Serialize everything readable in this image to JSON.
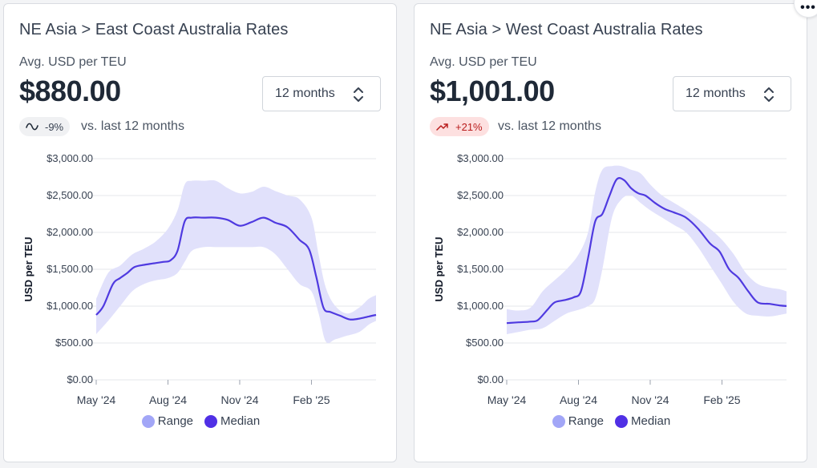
{
  "colors": {
    "median": "#4f3ae0",
    "range": "#e1e1fb",
    "range_legend": "#a2a6f7",
    "median_legend": "#5030e5",
    "grid": "#e5e7eb"
  },
  "more_icon": "more-horizontal-icon",
  "cards": [
    {
      "title": "NE Asia > East Coast Australia Rates",
      "subtitle": "Avg. USD per TEU",
      "value": "$880.00",
      "period": "12 months",
      "change": "-9%",
      "change_icon": "trend-flat-icon",
      "change_kind": "neutral",
      "compare_text": "vs. last 12 months",
      "legend": {
        "range": "Range",
        "median": "Median"
      }
    },
    {
      "title": "NE Asia > West Coast Australia Rates",
      "subtitle": "Avg. USD per TEU",
      "value": "$1,001.00",
      "period": "12 months",
      "change": "+21%",
      "change_icon": "trend-up-icon",
      "change_kind": "up",
      "compare_text": "vs. last 12 months",
      "legend": {
        "range": "Range",
        "median": "Median"
      }
    }
  ],
  "chart_data": [
    {
      "type": "area",
      "ylabel": "USD per TEU",
      "ylim": [
        0,
        3000
      ],
      "yticks": [
        "$0.00",
        "$500.00",
        "$1,000.00",
        "$1,500.00",
        "$2,000.00",
        "$2,500.00",
        "$3,000.00"
      ],
      "ytick_values": [
        0,
        500,
        1000,
        1500,
        2000,
        2500,
        3000
      ],
      "xticks": [
        "May '24",
        "Aug '24",
        "Nov '24",
        "Feb '25"
      ],
      "xtick_values": [
        0,
        3,
        6,
        9
      ],
      "xlim": [
        0,
        11.7
      ],
      "grid": true,
      "legend_position": "bottom",
      "series": [
        {
          "name": "Median",
          "x": [
            0,
            0.3,
            0.7,
            1.0,
            1.3,
            1.6,
            2.0,
            2.4,
            2.8,
            3.1,
            3.4,
            3.7,
            4.0,
            4.5,
            5.0,
            5.5,
            6.0,
            6.5,
            7.0,
            7.5,
            8.0,
            8.5,
            8.9,
            9.2,
            9.5,
            9.8,
            10.2,
            10.6,
            11.0,
            11.4,
            11.7
          ],
          "values": [
            880,
            1000,
            1300,
            1380,
            1450,
            1530,
            1560,
            1580,
            1600,
            1620,
            1750,
            2150,
            2200,
            2200,
            2200,
            2170,
            2090,
            2140,
            2200,
            2130,
            2070,
            1900,
            1770,
            1400,
            980,
            920,
            870,
            820,
            830,
            860,
            880
          ]
        },
        {
          "name": "Range",
          "x": [
            0,
            0.5,
            1.0,
            1.5,
            2.0,
            2.5,
            3.0,
            3.4,
            3.7,
            4.0,
            4.5,
            5.0,
            5.5,
            6.0,
            6.5,
            7.0,
            7.5,
            8.0,
            8.5,
            9.0,
            9.3,
            9.6,
            10.0,
            10.5,
            11.0,
            11.4,
            11.7
          ],
          "upper": [
            1100,
            1450,
            1550,
            1700,
            1780,
            1880,
            2050,
            2300,
            2650,
            2700,
            2700,
            2700,
            2600,
            2530,
            2550,
            2620,
            2560,
            2500,
            2450,
            2200,
            1700,
            1250,
            1000,
            900,
            980,
            1100,
            1150
          ],
          "lower": [
            620,
            800,
            1000,
            1200,
            1300,
            1350,
            1380,
            1450,
            1600,
            1750,
            1800,
            1800,
            1800,
            1800,
            1800,
            1800,
            1700,
            1500,
            1300,
            1200,
            900,
            520,
            550,
            600,
            650,
            750,
            800
          ]
        }
      ]
    },
    {
      "type": "area",
      "ylabel": "USD per TEU",
      "ylim": [
        0,
        3000
      ],
      "yticks": [
        "$0.00",
        "$500.00",
        "$1,000.00",
        "$1,500.00",
        "$2,000.00",
        "$2,500.00",
        "$3,000.00"
      ],
      "ytick_values": [
        0,
        500,
        1000,
        1500,
        2000,
        2500,
        3000
      ],
      "xticks": [
        "May '24",
        "Aug '24",
        "Nov '24",
        "Feb '25"
      ],
      "xtick_values": [
        0,
        3,
        6,
        9
      ],
      "xlim": [
        0,
        11.7
      ],
      "grid": true,
      "legend_position": "bottom",
      "series": [
        {
          "name": "Median",
          "x": [
            0,
            0.5,
            1.0,
            1.3,
            1.7,
            2.0,
            2.4,
            2.8,
            3.1,
            3.4,
            3.7,
            4.0,
            4.3,
            4.6,
            4.9,
            5.2,
            5.5,
            5.8,
            6.2,
            6.6,
            7.0,
            7.5,
            8.0,
            8.5,
            8.9,
            9.3,
            9.7,
            10.1,
            10.5,
            11.0,
            11.4,
            11.7
          ],
          "values": [
            770,
            780,
            790,
            810,
            950,
            1050,
            1080,
            1120,
            1200,
            1650,
            2150,
            2250,
            2500,
            2720,
            2710,
            2600,
            2530,
            2500,
            2400,
            2320,
            2270,
            2200,
            2050,
            1850,
            1740,
            1500,
            1380,
            1200,
            1050,
            1030,
            1010,
            1001
          ]
        },
        {
          "name": "Range",
          "x": [
            0,
            0.5,
            1.0,
            1.5,
            2.0,
            2.5,
            3.0,
            3.4,
            3.7,
            4.0,
            4.4,
            4.8,
            5.2,
            5.6,
            6.0,
            6.5,
            7.0,
            7.5,
            8.0,
            8.5,
            9.0,
            9.5,
            10.0,
            10.5,
            11.0,
            11.4,
            11.7
          ],
          "upper": [
            960,
            940,
            980,
            1200,
            1350,
            1500,
            1700,
            2000,
            2550,
            2850,
            2900,
            2900,
            2850,
            2800,
            2650,
            2500,
            2400,
            2300,
            2180,
            2050,
            1900,
            1700,
            1450,
            1300,
            1250,
            1230,
            1200
          ],
          "lower": [
            620,
            650,
            680,
            700,
            800,
            900,
            950,
            1000,
            1100,
            1500,
            2200,
            2450,
            2500,
            2400,
            2300,
            2200,
            2100,
            2000,
            1800,
            1550,
            1300,
            1050,
            900,
            870,
            860,
            880,
            900
          ]
        }
      ]
    }
  ]
}
